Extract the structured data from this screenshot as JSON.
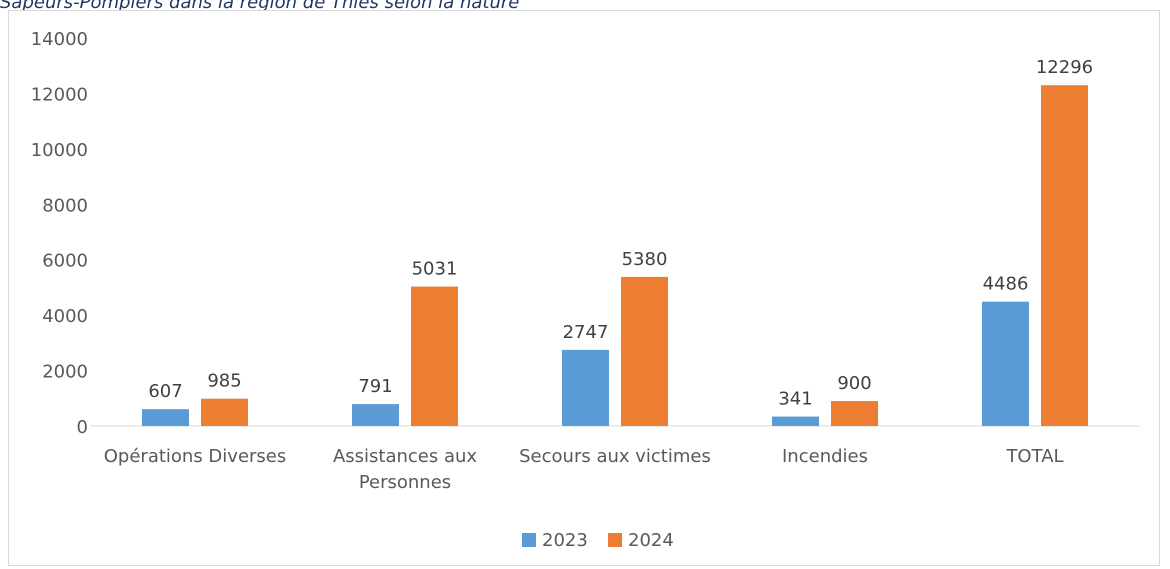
{
  "caption": "Sapeurs-Pompiers dans la région de Thiès selon la nature",
  "chart_data": {
    "type": "bar",
    "categories": [
      [
        "Opérations Diverses"
      ],
      [
        "Assistances aux",
        "Personnes"
      ],
      [
        "Secours aux victimes"
      ],
      [
        "Incendies"
      ],
      [
        "TOTAL"
      ]
    ],
    "series": [
      {
        "name": "2023",
        "color": "#5b9bd5",
        "values": [
          607,
          791,
          2747,
          341,
          4486
        ]
      },
      {
        "name": "2024",
        "color": "#ed7d31",
        "values": [
          985,
          5031,
          5380,
          900,
          12296
        ]
      }
    ],
    "ylim": [
      0,
      14000
    ],
    "yticks": [
      0,
      2000,
      4000,
      6000,
      8000,
      10000,
      12000,
      14000
    ],
    "grid": false,
    "legend": "bottom-center",
    "data_labels": true
  }
}
